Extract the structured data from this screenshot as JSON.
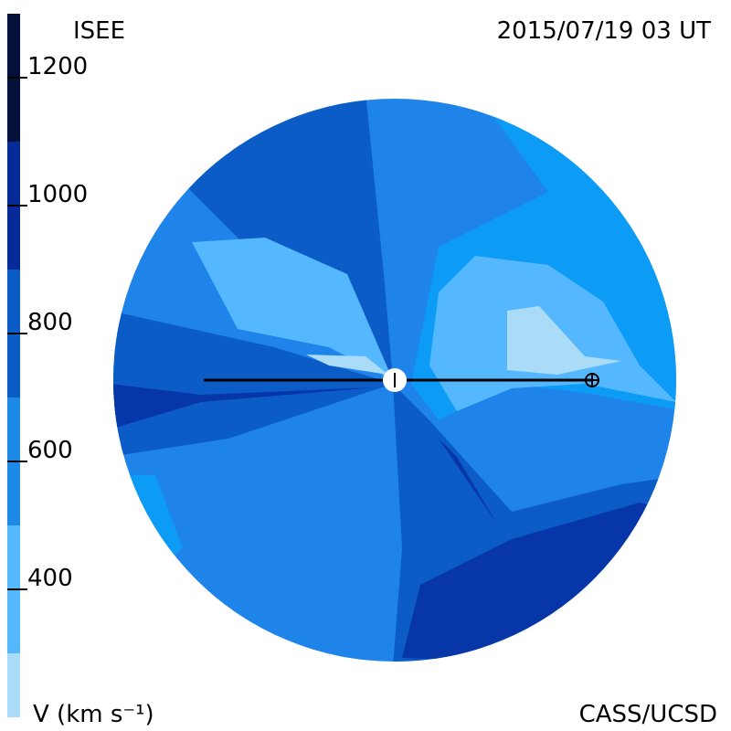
{
  "header": {
    "left": "ISEE",
    "right": "2015/07/19 03 UT"
  },
  "colorbar": {
    "label": "V (km s⁻¹)",
    "range": [
      200,
      1300
    ],
    "ticks": [
      400,
      600,
      800,
      1000,
      1200
    ],
    "bands": [
      {
        "from": 200,
        "to": 300,
        "color": "#aadcf8"
      },
      {
        "from": 300,
        "to": 500,
        "color": "#55b8ff"
      },
      {
        "from": 500,
        "to": 700,
        "color": "#1e8ae8"
      },
      {
        "from": 700,
        "to": 900,
        "color": "#0c5cc8"
      },
      {
        "from": 900,
        "to": 1100,
        "color": "#062a98"
      },
      {
        "from": 1100,
        "to": 1300,
        "color": "#02103a"
      }
    ]
  },
  "footer": {
    "right": "CASS/UCSD"
  }
}
